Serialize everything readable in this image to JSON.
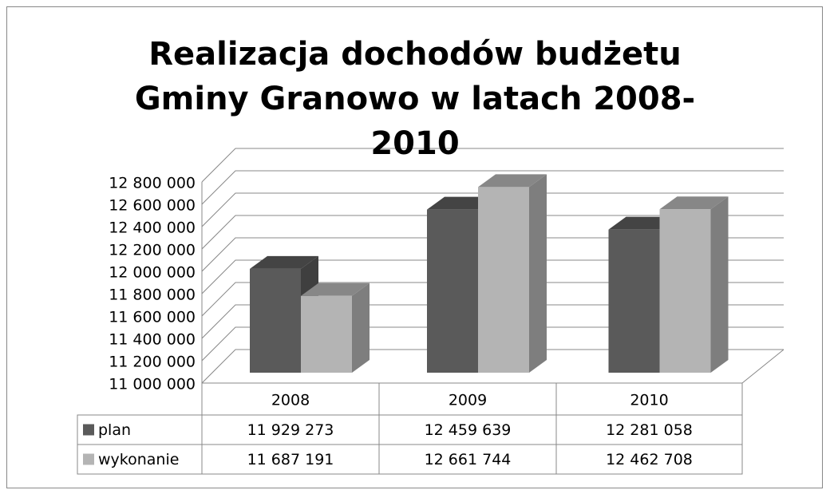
{
  "chart_data": {
    "type": "bar3d",
    "title": "Realizacja dochodów budżetu Gminy Granowo w latach 2008-2010",
    "categories": [
      "2008",
      "2009",
      "2010"
    ],
    "series": [
      {
        "name": "plan",
        "color": "#5a5a5a",
        "values": [
          11929273,
          12459639,
          12281058
        ],
        "value_labels": [
          "11 929 273",
          "12 459 639",
          "12 281 058"
        ]
      },
      {
        "name": "wykonanie",
        "color": "#b4b4b4",
        "values": [
          11687191,
          12661744,
          12462708
        ],
        "value_labels": [
          "11 687 191",
          "12 661 744",
          "12 462 708"
        ]
      }
    ],
    "ylim": [
      11000000,
      12800000
    ],
    "yticks": [
      {
        "value": 11000000,
        "label": "11 000 000"
      },
      {
        "value": 11200000,
        "label": "11 200 000"
      },
      {
        "value": 11400000,
        "label": "11 400 000"
      },
      {
        "value": 11600000,
        "label": "11 600 000"
      },
      {
        "value": 11800000,
        "label": "11 800 000"
      },
      {
        "value": 12000000,
        "label": "12 000 000"
      },
      {
        "value": 12200000,
        "label": "12 200 000"
      },
      {
        "value": 12400000,
        "label": "12 400 000"
      },
      {
        "value": 12600000,
        "label": "12 600 000"
      },
      {
        "value": 12800000,
        "label": "12 800 000"
      }
    ],
    "grid": true,
    "legend": "table"
  }
}
